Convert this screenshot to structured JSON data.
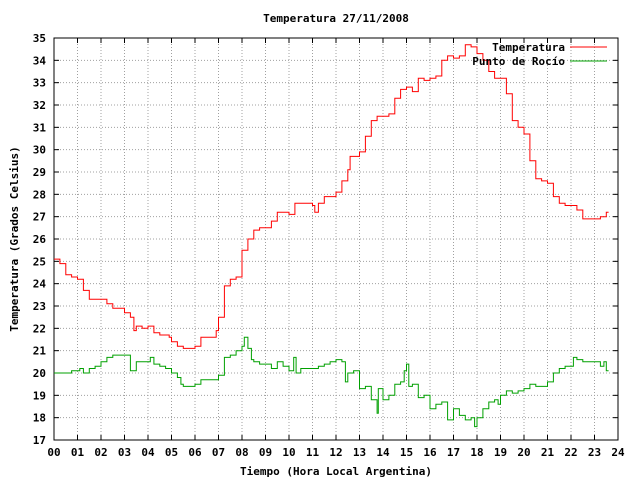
{
  "chart_data": {
    "type": "line",
    "title": "Temperatura 27/11/2008",
    "xlabel": "Tiempo (Hora Local Argentina)",
    "ylabel": "Temperatura (Grados Celsius)",
    "xlim": [
      0,
      24
    ],
    "ylim": [
      17,
      35
    ],
    "x_ticks": [
      "00",
      "01",
      "02",
      "03",
      "04",
      "05",
      "06",
      "07",
      "08",
      "09",
      "10",
      "11",
      "12",
      "13",
      "14",
      "15",
      "16",
      "17",
      "18",
      "19",
      "20",
      "21",
      "22",
      "23",
      "24"
    ],
    "y_ticks": [
      "17",
      "18",
      "19",
      "20",
      "21",
      "22",
      "23",
      "24",
      "25",
      "26",
      "27",
      "28",
      "29",
      "30",
      "31",
      "32",
      "33",
      "34",
      "35"
    ],
    "grid": true,
    "legend_position": "top-right",
    "series": [
      {
        "name": "Temperatura",
        "color": "#ff0000",
        "points": [
          [
            0.0,
            25.1
          ],
          [
            0.25,
            24.9
          ],
          [
            0.5,
            24.4
          ],
          [
            0.75,
            24.3
          ],
          [
            1.0,
            24.2
          ],
          [
            1.25,
            23.7
          ],
          [
            1.5,
            23.3
          ],
          [
            2.0,
            23.3
          ],
          [
            2.25,
            23.1
          ],
          [
            2.5,
            22.9
          ],
          [
            3.0,
            22.7
          ],
          [
            3.25,
            22.5
          ],
          [
            3.4,
            21.9
          ],
          [
            3.5,
            22.1
          ],
          [
            3.75,
            22.0
          ],
          [
            4.0,
            22.1
          ],
          [
            4.25,
            21.8
          ],
          [
            4.5,
            21.7
          ],
          [
            4.9,
            21.6
          ],
          [
            5.0,
            21.4
          ],
          [
            5.25,
            21.2
          ],
          [
            5.5,
            21.1
          ],
          [
            5.8,
            21.1
          ],
          [
            6.0,
            21.2
          ],
          [
            6.25,
            21.6
          ],
          [
            6.75,
            21.6
          ],
          [
            6.9,
            21.9
          ],
          [
            7.0,
            22.5
          ],
          [
            7.25,
            23.9
          ],
          [
            7.5,
            24.2
          ],
          [
            7.75,
            24.3
          ],
          [
            8.0,
            25.5
          ],
          [
            8.25,
            26.0
          ],
          [
            8.5,
            26.4
          ],
          [
            8.75,
            26.5
          ],
          [
            9.0,
            26.5
          ],
          [
            9.25,
            26.8
          ],
          [
            9.5,
            27.2
          ],
          [
            10.0,
            27.1
          ],
          [
            10.25,
            27.6
          ],
          [
            10.5,
            27.6
          ],
          [
            10.75,
            27.6
          ],
          [
            11.0,
            27.5
          ],
          [
            11.1,
            27.2
          ],
          [
            11.25,
            27.6
          ],
          [
            11.5,
            27.9
          ],
          [
            12.0,
            28.1
          ],
          [
            12.25,
            28.6
          ],
          [
            12.5,
            29.1
          ],
          [
            12.6,
            29.7
          ],
          [
            12.75,
            29.7
          ],
          [
            13.0,
            29.9
          ],
          [
            13.25,
            30.6
          ],
          [
            13.5,
            31.3
          ],
          [
            13.75,
            31.5
          ],
          [
            14.0,
            31.5
          ],
          [
            14.25,
            31.6
          ],
          [
            14.5,
            32.3
          ],
          [
            14.75,
            32.7
          ],
          [
            15.0,
            32.8
          ],
          [
            15.25,
            32.6
          ],
          [
            15.5,
            33.2
          ],
          [
            15.75,
            33.1
          ],
          [
            16.0,
            33.2
          ],
          [
            16.25,
            33.3
          ],
          [
            16.5,
            34.0
          ],
          [
            16.75,
            34.2
          ],
          [
            17.0,
            34.1
          ],
          [
            17.25,
            34.2
          ],
          [
            17.5,
            34.7
          ],
          [
            17.75,
            34.6
          ],
          [
            18.0,
            34.3
          ],
          [
            18.25,
            34.0
          ],
          [
            18.5,
            33.5
          ],
          [
            18.75,
            33.2
          ],
          [
            19.0,
            33.2
          ],
          [
            19.25,
            32.5
          ],
          [
            19.5,
            31.3
          ],
          [
            19.75,
            31.0
          ],
          [
            20.0,
            30.7
          ],
          [
            20.25,
            29.5
          ],
          [
            20.5,
            28.7
          ],
          [
            20.75,
            28.6
          ],
          [
            21.0,
            28.5
          ],
          [
            21.25,
            27.9
          ],
          [
            21.5,
            27.6
          ],
          [
            21.75,
            27.5
          ],
          [
            22.0,
            27.5
          ],
          [
            22.25,
            27.3
          ],
          [
            22.5,
            26.9
          ],
          [
            22.75,
            26.9
          ],
          [
            23.0,
            26.9
          ],
          [
            23.25,
            27.0
          ],
          [
            23.5,
            27.2
          ],
          [
            23.6,
            27.2
          ]
        ]
      },
      {
        "name": "Punto de Rocío",
        "color": "#00a000",
        "points": [
          [
            0.0,
            20.0
          ],
          [
            0.25,
            20.0
          ],
          [
            0.5,
            20.0
          ],
          [
            0.75,
            20.1
          ],
          [
            1.0,
            20.1
          ],
          [
            1.1,
            20.2
          ],
          [
            1.25,
            20.0
          ],
          [
            1.5,
            20.2
          ],
          [
            1.75,
            20.3
          ],
          [
            2.0,
            20.5
          ],
          [
            2.25,
            20.7
          ],
          [
            2.5,
            20.8
          ],
          [
            2.75,
            20.8
          ],
          [
            3.0,
            20.8
          ],
          [
            3.25,
            20.1
          ],
          [
            3.5,
            20.5
          ],
          [
            3.75,
            20.5
          ],
          [
            4.0,
            20.5
          ],
          [
            4.1,
            20.7
          ],
          [
            4.25,
            20.4
          ],
          [
            4.5,
            20.3
          ],
          [
            4.75,
            20.2
          ],
          [
            5.0,
            20.0
          ],
          [
            5.25,
            19.8
          ],
          [
            5.4,
            19.5
          ],
          [
            5.5,
            19.4
          ],
          [
            5.75,
            19.4
          ],
          [
            6.0,
            19.5
          ],
          [
            6.25,
            19.7
          ],
          [
            6.75,
            19.7
          ],
          [
            7.0,
            19.9
          ],
          [
            7.25,
            20.7
          ],
          [
            7.5,
            20.8
          ],
          [
            7.75,
            21.0
          ],
          [
            8.0,
            21.2
          ],
          [
            8.1,
            21.6
          ],
          [
            8.25,
            21.1
          ],
          [
            8.4,
            20.6
          ],
          [
            8.5,
            20.5
          ],
          [
            8.75,
            20.4
          ],
          [
            9.0,
            20.4
          ],
          [
            9.25,
            20.2
          ],
          [
            9.5,
            20.5
          ],
          [
            9.75,
            20.3
          ],
          [
            10.0,
            20.1
          ],
          [
            10.2,
            20.7
          ],
          [
            10.3,
            20.0
          ],
          [
            10.5,
            20.2
          ],
          [
            10.75,
            20.2
          ],
          [
            11.0,
            20.2
          ],
          [
            11.25,
            20.3
          ],
          [
            11.5,
            20.4
          ],
          [
            11.75,
            20.5
          ],
          [
            12.0,
            20.6
          ],
          [
            12.25,
            20.5
          ],
          [
            12.4,
            19.6
          ],
          [
            12.5,
            20.0
          ],
          [
            12.75,
            20.1
          ],
          [
            13.0,
            19.3
          ],
          [
            13.25,
            19.4
          ],
          [
            13.5,
            18.8
          ],
          [
            13.75,
            18.2
          ],
          [
            13.8,
            19.3
          ],
          [
            14.0,
            18.8
          ],
          [
            14.25,
            19.0
          ],
          [
            14.5,
            19.5
          ],
          [
            14.75,
            19.6
          ],
          [
            14.9,
            20.1
          ],
          [
            15.0,
            20.4
          ],
          [
            15.1,
            19.4
          ],
          [
            15.25,
            19.5
          ],
          [
            15.5,
            18.9
          ],
          [
            15.75,
            19.0
          ],
          [
            16.0,
            18.4
          ],
          [
            16.25,
            18.6
          ],
          [
            16.5,
            18.7
          ],
          [
            16.75,
            17.9
          ],
          [
            17.0,
            18.4
          ],
          [
            17.25,
            18.1
          ],
          [
            17.5,
            17.9
          ],
          [
            17.75,
            18.0
          ],
          [
            17.9,
            17.6
          ],
          [
            18.0,
            18.0
          ],
          [
            18.25,
            18.4
          ],
          [
            18.5,
            18.7
          ],
          [
            18.75,
            18.8
          ],
          [
            18.9,
            18.6
          ],
          [
            19.0,
            19.0
          ],
          [
            19.25,
            19.2
          ],
          [
            19.5,
            19.1
          ],
          [
            19.75,
            19.2
          ],
          [
            20.0,
            19.3
          ],
          [
            20.25,
            19.5
          ],
          [
            20.5,
            19.4
          ],
          [
            20.75,
            19.4
          ],
          [
            21.0,
            19.6
          ],
          [
            21.25,
            20.0
          ],
          [
            21.5,
            20.2
          ],
          [
            21.75,
            20.3
          ],
          [
            22.0,
            20.3
          ],
          [
            22.1,
            20.7
          ],
          [
            22.25,
            20.6
          ],
          [
            22.5,
            20.5
          ],
          [
            22.75,
            20.5
          ],
          [
            23.0,
            20.5
          ],
          [
            23.25,
            20.3
          ],
          [
            23.4,
            20.5
          ],
          [
            23.5,
            20.1
          ],
          [
            23.6,
            20.1
          ]
        ]
      }
    ]
  }
}
